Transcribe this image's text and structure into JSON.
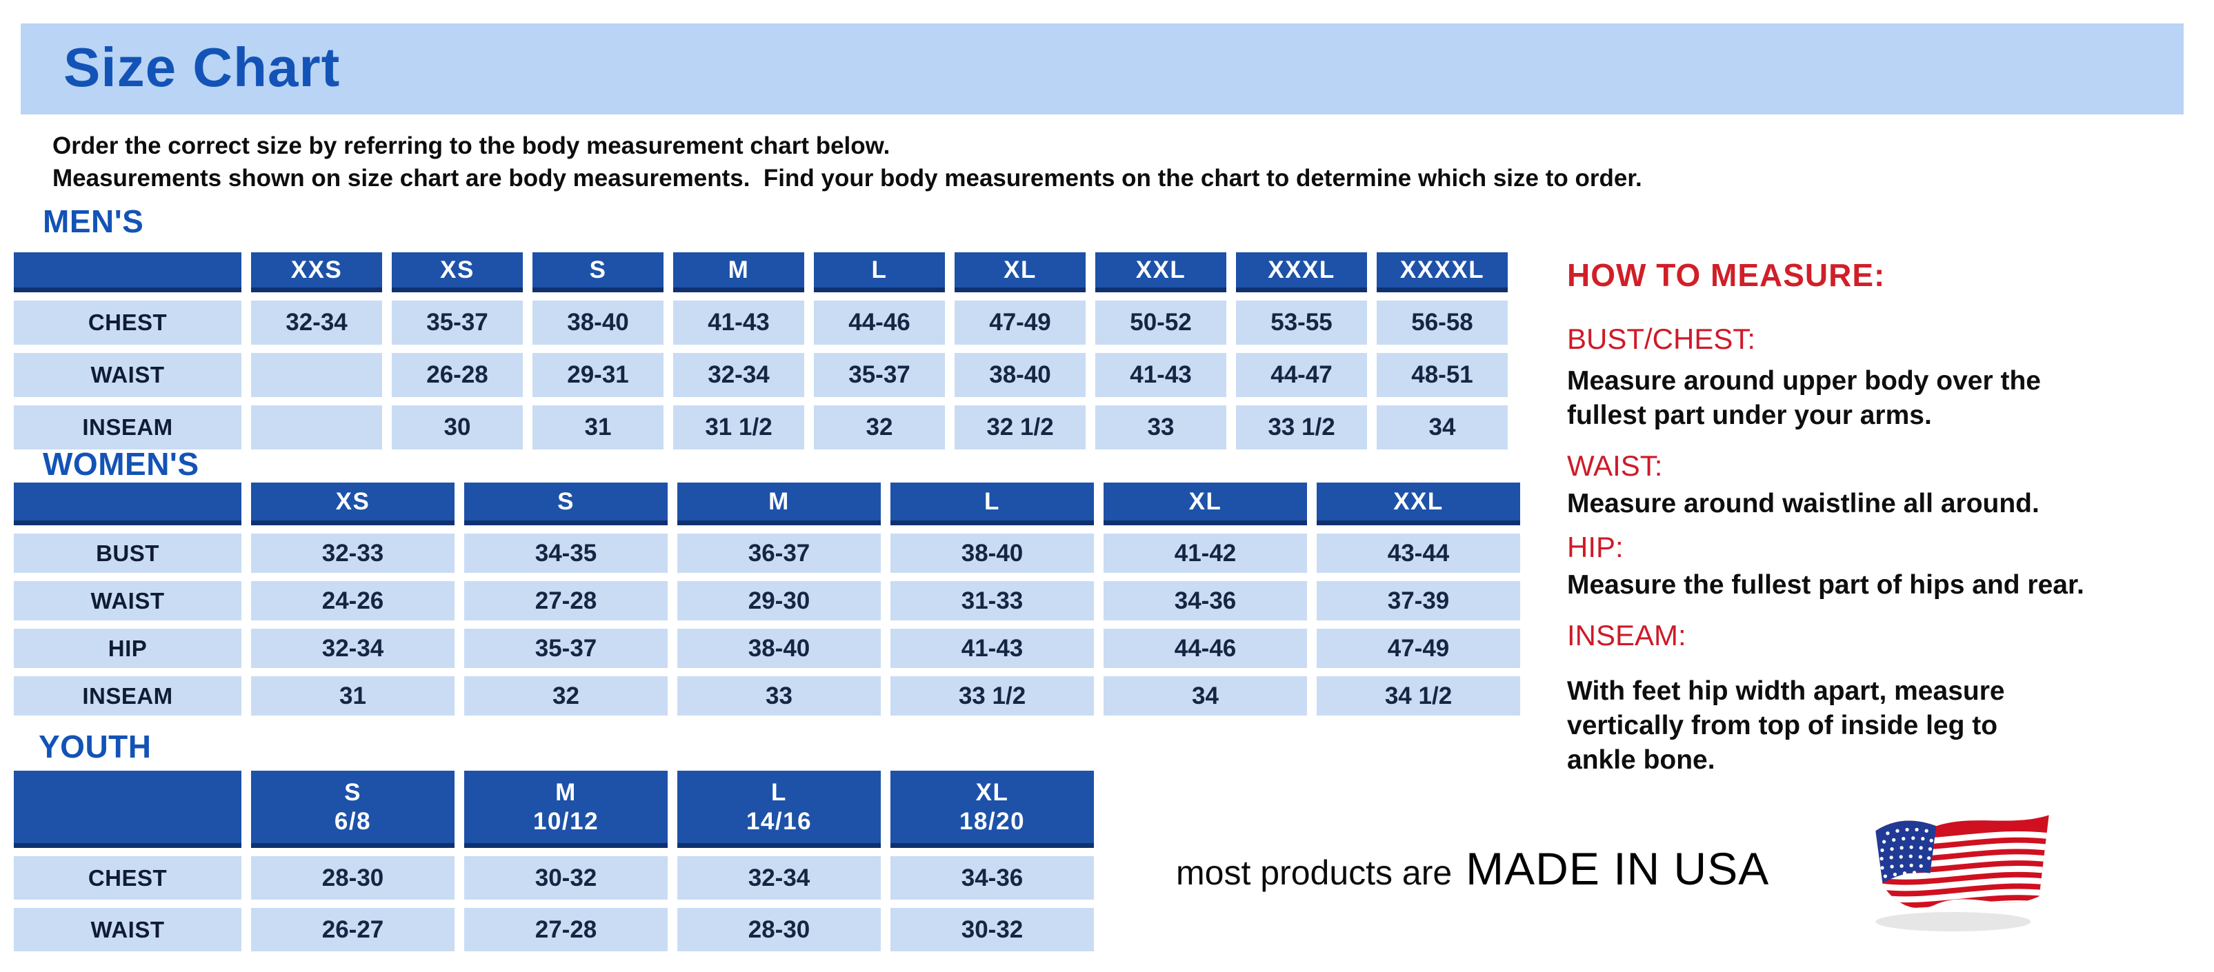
{
  "header": {
    "title": "Size Chart"
  },
  "intro": {
    "line1": "Order the correct size by referring to the body measurement chart below.",
    "line2": "Measurements shown on size chart are body measurements.  Find your body measurements on the chart to determine which size to order."
  },
  "tables": [
    {
      "id": "mens",
      "section_title": "MEN'S",
      "columns": [
        "XXS",
        "XS",
        "S",
        "M",
        "L",
        "XL",
        "XXL",
        "XXXL",
        "XXXXL"
      ],
      "rows": [
        {
          "label": "CHEST",
          "values": [
            "32-34",
            "35-37",
            "38-40",
            "41-43",
            "44-46",
            "47-49",
            "50-52",
            "53-55",
            "56-58"
          ]
        },
        {
          "label": "WAIST",
          "values": [
            "",
            "26-28",
            "29-31",
            "32-34",
            "35-37",
            "38-40",
            "41-43",
            "44-47",
            "48-51"
          ]
        },
        {
          "label": "INSEAM",
          "values": [
            "",
            "30",
            "31",
            "31 1/2",
            "32",
            "32 1/2",
            "33",
            "33 1/2",
            "34"
          ]
        }
      ]
    },
    {
      "id": "womens",
      "section_title": "WOMEN'S",
      "columns": [
        "XS",
        "S",
        "M",
        "L",
        "XL",
        "XXL"
      ],
      "rows": [
        {
          "label": "BUST",
          "values": [
            "32-33",
            "34-35",
            "36-37",
            "38-40",
            "41-42",
            "43-44"
          ]
        },
        {
          "label": "WAIST",
          "values": [
            "24-26",
            "27-28",
            "29-30",
            "31-33",
            "34-36",
            "37-39"
          ]
        },
        {
          "label": "HIP",
          "values": [
            "32-34",
            "35-37",
            "38-40",
            "41-43",
            "44-46",
            "47-49"
          ]
        },
        {
          "label": "INSEAM",
          "values": [
            "31",
            "32",
            "33",
            "33 1/2",
            "34",
            "34 1/2"
          ]
        }
      ]
    },
    {
      "id": "youth",
      "section_title": "YOUTH",
      "columns": [
        "S\n6/8",
        "M\n10/12",
        "L\n14/16",
        "XL\n18/20"
      ],
      "rows": [
        {
          "label": "CHEST",
          "values": [
            "28-30",
            "30-32",
            "32-34",
            "34-36"
          ]
        },
        {
          "label": "WAIST",
          "values": [
            "26-27",
            "27-28",
            "28-30",
            "30-32"
          ]
        }
      ]
    }
  ],
  "how_to_measure": {
    "title": "HOW TO MEASURE:",
    "items": [
      {
        "label": "BUST/CHEST:",
        "text": "Measure around upper body over the\nfullest part under your arms."
      },
      {
        "label": "WAIST:",
        "text": "Measure around waistline all around."
      },
      {
        "label": "HIP:",
        "text": "Measure the fullest part of hips and rear."
      },
      {
        "label": "INSEAM:",
        "text": "With feet hip width apart, measure\nvertically from top of inside leg to\nankle bone."
      }
    ]
  },
  "footer": {
    "prefix": "most products are",
    "emphasis": "MADE IN USA",
    "flag_icon": "usa-flag-icon"
  },
  "colors": {
    "banner_blue": "#b9d4f4",
    "header_blue": "#1d52a8",
    "cell_blue": "#c9dcf4",
    "title_blue": "#1353b7",
    "accent_red": "#d01f28"
  }
}
